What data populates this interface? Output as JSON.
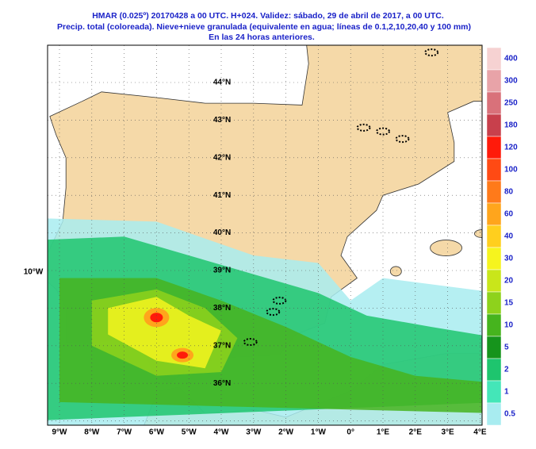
{
  "header": {
    "lines": [
      "HMAR (0.025º) 20170428 a 00 UTC.  H+024.  Validez: sábado, 29 de abril de 2017,  a  00 UTC.",
      "Precip. total (coloreada). Nieve+nieve granulada (equivalente en agua; líneas de 0.1,2,10,20,40 y 100 mm)",
      "En las 24 horas anteriores."
    ]
  },
  "map": {
    "longitude_labels": [
      "9°W",
      "8°W",
      "7°W",
      "6°W",
      "5°W",
      "4°W",
      "3°W",
      "2°W",
      "1°W",
      "0°",
      "1°E",
      "2°E",
      "3°E",
      "4°E"
    ],
    "latitude_labels": [
      "44°N",
      "43°N",
      "42°N",
      "41°N",
      "40°N",
      "39°N",
      "38°N",
      "37°N",
      "36°N"
    ],
    "side_label": "10°W"
  },
  "colorbar": [
    {
      "label": 400,
      "color": "#f6d2d2"
    },
    {
      "label": 300,
      "color": "#e8a3a8"
    },
    {
      "label": 250,
      "color": "#d9717a"
    },
    {
      "label": 180,
      "color": "#c8404c"
    },
    {
      "label": 120,
      "color": "#ff1a0a"
    },
    {
      "label": 100,
      "color": "#ff4a14"
    },
    {
      "label": 80,
      "color": "#ff7a1a"
    },
    {
      "label": 60,
      "color": "#ffa51c"
    },
    {
      "label": 40,
      "color": "#ffcf1e"
    },
    {
      "label": 30,
      "color": "#f6f41e"
    },
    {
      "label": 20,
      "color": "#c9e61a"
    },
    {
      "label": 15,
      "color": "#8ed21c"
    },
    {
      "label": 10,
      "color": "#46b41e"
    },
    {
      "label": 5,
      "color": "#16941c"
    },
    {
      "label": 2,
      "color": "#1ec56e"
    },
    {
      "label": 1,
      "color": "#44e6b8"
    },
    {
      "label": 0.5,
      "color": "#a8ecf0"
    }
  ]
}
